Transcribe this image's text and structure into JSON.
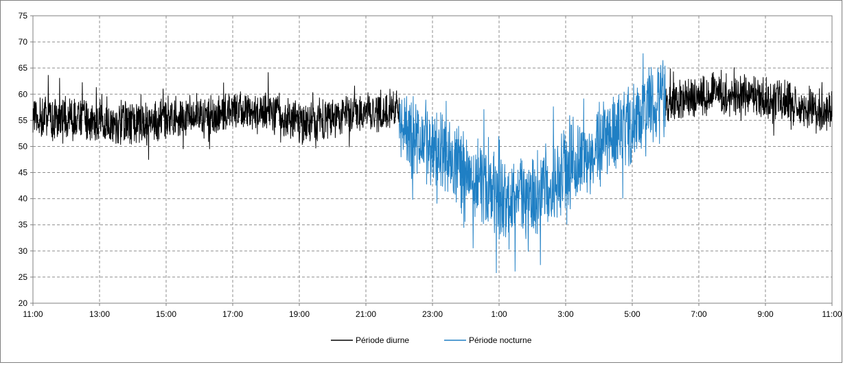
{
  "chart_data": {
    "type": "line",
    "title": "",
    "xlabel": "",
    "ylabel": "",
    "ylim": [
      20,
      75
    ],
    "y_ticks": [
      20,
      25,
      30,
      35,
      40,
      45,
      50,
      55,
      60,
      65,
      70,
      75
    ],
    "x_range_hours": [
      11,
      35
    ],
    "x_ticks": [
      {
        "label": "11:00",
        "hour": 11
      },
      {
        "label": "13:00",
        "hour": 13
      },
      {
        "label": "15:00",
        "hour": 15
      },
      {
        "label": "17:00",
        "hour": 17
      },
      {
        "label": "19:00",
        "hour": 19
      },
      {
        "label": "21:00",
        "hour": 21
      },
      {
        "label": "23:00",
        "hour": 23
      },
      {
        "label": "1:00",
        "hour": 25
      },
      {
        "label": "3:00",
        "hour": 27
      },
      {
        "label": "5:00",
        "hour": 29
      },
      {
        "label": "7:00",
        "hour": 31
      },
      {
        "label": "9:00",
        "hour": 33
      },
      {
        "label": "11:00",
        "hour": 35
      }
    ],
    "grid": true,
    "grid_style": "dashed",
    "legend_position": "bottom",
    "series": [
      {
        "name": "Période diurne",
        "color": "#000000",
        "segments": [
          {
            "hours": [
              11,
              12,
              13,
              14,
              15,
              16,
              17,
              18,
              19,
              20,
              21,
              22
            ],
            "mean": [
              56,
              55.5,
              54.5,
              54.5,
              55,
              56,
              56.5,
              57,
              54,
              55.5,
              57,
              57
            ],
            "amplitude": 4.5
          },
          {
            "hours": [
              30,
              31,
              32,
              33,
              34,
              35
            ],
            "mean": [
              58,
              59.5,
              60,
              59,
              58,
              57
            ],
            "amplitude": 4.5
          }
        ]
      },
      {
        "name": "Période nocturne",
        "color": "#1f7fc4",
        "segments": [
          {
            "hours": [
              22,
              23,
              24,
              25,
              26,
              27,
              28,
              29,
              30
            ],
            "mean": [
              53,
              50,
              45,
              40,
              40,
              45,
              50,
              55,
              59
            ],
            "amplitude": 9
          }
        ]
      }
    ]
  }
}
